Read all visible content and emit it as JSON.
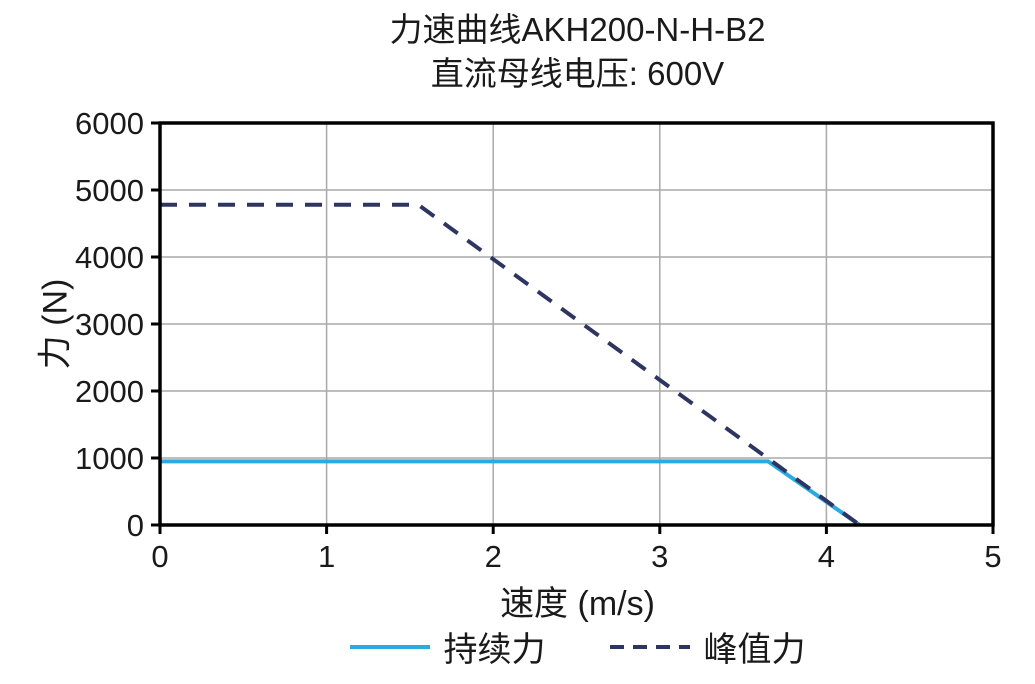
{
  "figure": {
    "title_line1": "力速曲线AKH200-N-H-B2",
    "title_line2": "直流母线电压: 600V"
  },
  "chart_data": {
    "type": "line",
    "title": "力速曲线AKH200-N-H-B2",
    "subtitle": "直流母线电压: 600V",
    "xlabel": "速度 (m/s)",
    "ylabel": "力 (N)",
    "xlim": [
      0,
      5
    ],
    "ylim": [
      0,
      6000
    ],
    "xticks": [
      0,
      1,
      2,
      3,
      4,
      5
    ],
    "yticks": [
      0,
      1000,
      2000,
      3000,
      4000,
      5000,
      6000
    ],
    "grid": true,
    "grid_color": "#a9a9a9",
    "axis_color": "#000000",
    "legend_position": "bottom",
    "series": [
      {
        "name": "持续力",
        "color": "#29abe2",
        "style": "solid",
        "line_width": 4,
        "points": [
          [
            0,
            950
          ],
          [
            3.65,
            950
          ],
          [
            4.2,
            0
          ]
        ]
      },
      {
        "name": "峰值力",
        "color": "#2f3561",
        "style": "dashed",
        "line_width": 4,
        "points": [
          [
            0,
            4780
          ],
          [
            1.55,
            4780
          ],
          [
            4.2,
            0
          ]
        ]
      }
    ]
  }
}
